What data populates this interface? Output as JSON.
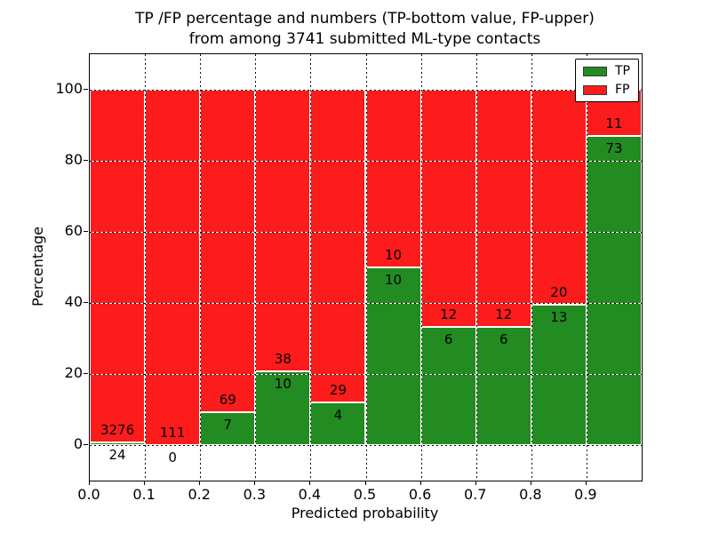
{
  "title": {
    "line1": "TP /FP percentage and numbers (TP-bottom value, FP-upper)",
    "line2": "from among 3741 submitted ML-type contacts"
  },
  "axes": {
    "xlabel": "Predicted probability",
    "ylabel": "Percentage",
    "xtick_labels": [
      "0.0",
      "0.1",
      "0.2",
      "0.3",
      "0.4",
      "0.5",
      "0.6",
      "0.7",
      "0.8",
      "0.9"
    ],
    "ytick_values": [
      0,
      20,
      40,
      60,
      80,
      100
    ],
    "xlim": [
      0.0,
      1.0
    ],
    "ylim": [
      -10,
      110
    ],
    "grid": "dotted black, both axes"
  },
  "legend": {
    "position": "upper right",
    "items": [
      {
        "label": "TP",
        "color": "#228b22"
      },
      {
        "label": "FP",
        "color": "#fc1c1c"
      }
    ]
  },
  "chart_data": {
    "type": "bar",
    "stacked": true,
    "orientation": "vertical",
    "title": "TP /FP percentage and numbers (TP-bottom value, FP-upper) from among 3741 submitted ML-type contacts",
    "xlabel": "Predicted probability",
    "ylabel": "Percentage",
    "x_bin_edges": [
      0.0,
      0.1,
      0.2,
      0.3,
      0.4,
      0.5,
      0.6,
      0.7,
      0.8,
      0.9,
      1.0
    ],
    "series": [
      {
        "name": "TP",
        "color": "#228b22",
        "counts": [
          24,
          0,
          7,
          10,
          4,
          10,
          6,
          6,
          13,
          73
        ]
      },
      {
        "name": "FP",
        "color": "#fc1c1c",
        "counts": [
          3276,
          111,
          69,
          38,
          29,
          10,
          12,
          12,
          20,
          11
        ]
      }
    ],
    "bar_heights_are": "percent of bin total; each stack sums to 100%",
    "annotation_rule": "TP count printed just below TP/FP boundary, FP count just above it",
    "total_contacts": 3741,
    "xlim": [
      0.0,
      1.0
    ],
    "ylim": [
      -10,
      110
    ],
    "yticks": [
      0,
      20,
      40,
      60,
      80,
      100
    ],
    "legend_position": "upper right"
  }
}
